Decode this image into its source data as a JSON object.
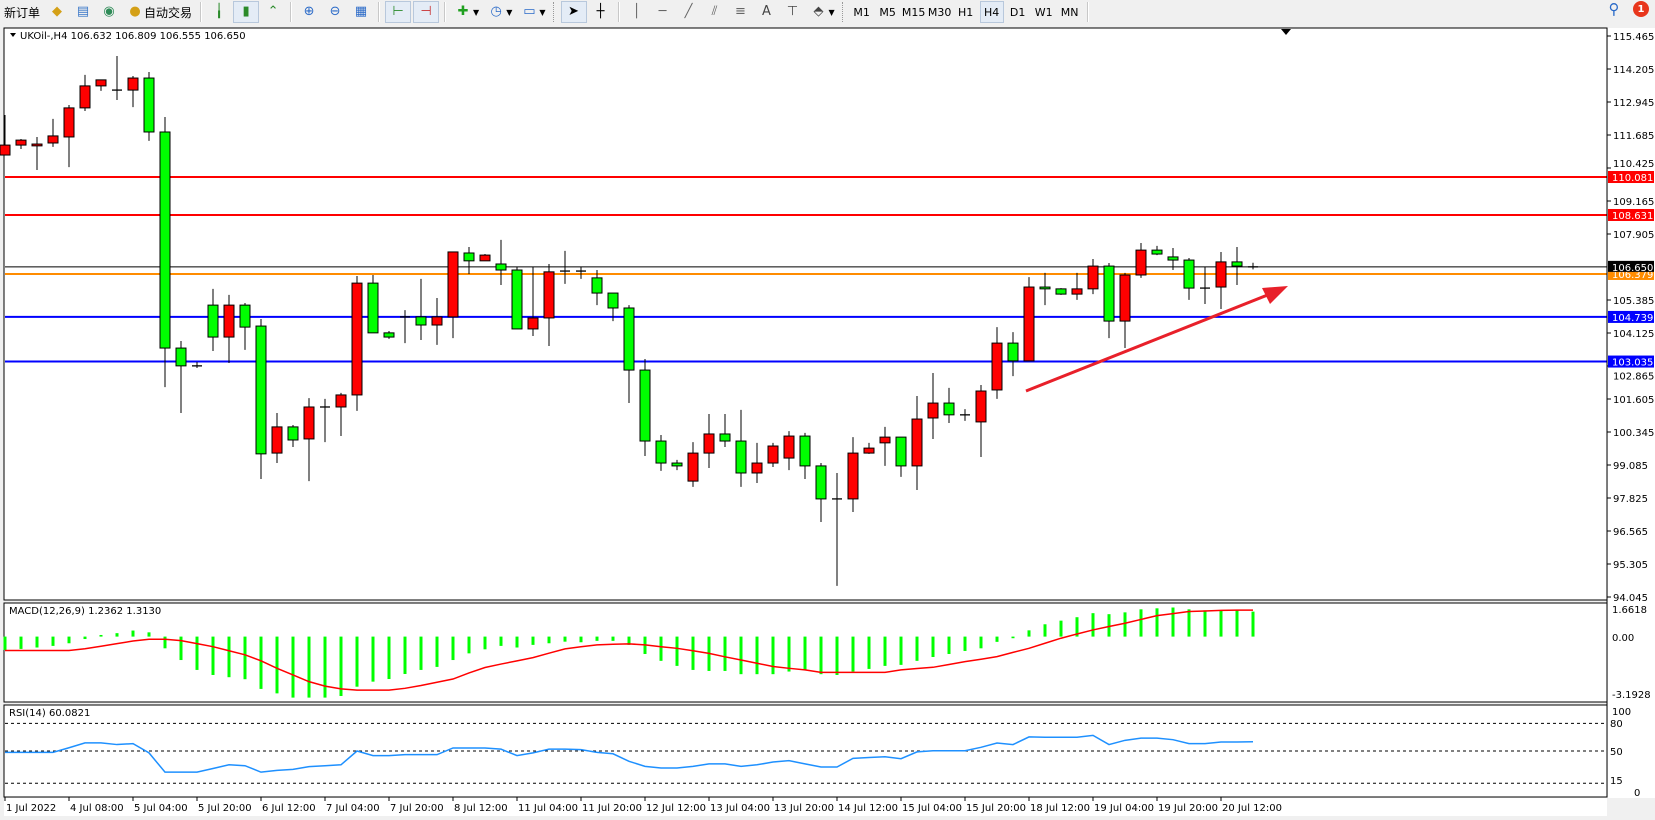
{
  "toolbar": {
    "new_order_label": "新订单",
    "auto_trading_label": "自动交易",
    "timeframes": [
      "M1",
      "M5",
      "M15",
      "M30",
      "H1",
      "H4",
      "D1",
      "W1",
      "MN"
    ],
    "active_timeframe": "H4",
    "text_tool_label": "A",
    "notification_count": "1"
  },
  "chart": {
    "header": "UKOil-,H4  106.632 106.809 106.555 106.650",
    "price_ticks": [
      "115.465",
      "114.205",
      "112.945",
      "111.685",
      "110.425",
      "109.165",
      "107.905",
      "105.385",
      "104.125",
      "102.865",
      "101.605",
      "100.345",
      "99.085",
      "97.825",
      "96.565",
      "95.305",
      "94.045"
    ],
    "current_price": "106.650",
    "levels": [
      {
        "price": 110.081,
        "label": "110.081",
        "color": "#ff0000"
      },
      {
        "price": 108.631,
        "label": "108.631",
        "color": "#ff0000"
      },
      {
        "price": 106.379,
        "label": "106.379",
        "color": "#ff8c00"
      },
      {
        "price": 104.739,
        "label": "104.739",
        "color": "#0000ff"
      },
      {
        "price": 103.035,
        "label": "103.035",
        "color": "#0000ff"
      }
    ],
    "colors": {
      "bull": "#ff0000",
      "bear": "#00ff00",
      "macd_hist": "#00ff00",
      "macd_signal": "#ff0000",
      "rsi": "#1e90ff",
      "arrow": "#e8202a"
    },
    "time_labels": [
      "1 Jul 2022",
      "4 Jul 08:00",
      "5 Jul 04:00",
      "5 Jul 20:00",
      "6 Jul 12:00",
      "7 Jul 04:00",
      "7 Jul 20:00",
      "8 Jul 12:00",
      "11 Jul 04:00",
      "11 Jul 20:00",
      "12 Jul 12:00",
      "13 Jul 04:00",
      "13 Jul 20:00",
      "14 Jul 12:00",
      "15 Jul 04:00",
      "15 Jul 20:00",
      "18 Jul 12:00",
      "19 Jul 04:00",
      "19 Jul 20:00",
      "20 Jul 12:00"
    ],
    "macd": {
      "label": "MACD(12,26,9) 1.2362 1.3130",
      "ticks": [
        "1.6618",
        "0.00",
        "-3.1928"
      ]
    },
    "rsi": {
      "label": "RSI(14) 60.0821",
      "ticks": [
        "100",
        "80",
        "50",
        "15",
        "0"
      ],
      "levels": [
        80,
        50,
        15
      ]
    }
  },
  "chart_data": {
    "type": "candlestick",
    "symbol": "UKOil-",
    "timeframe": "H4",
    "ylim": [
      94.045,
      115.465
    ],
    "ohlc": [
      [
        110.92,
        112.45,
        110.92,
        111.3
      ],
      [
        111.3,
        111.53,
        111.15,
        111.49
      ],
      [
        111.27,
        111.61,
        110.35,
        111.34
      ],
      [
        111.38,
        112.3,
        111.23,
        111.65
      ],
      [
        111.61,
        112.83,
        110.46,
        112.72
      ],
      [
        112.72,
        113.98,
        112.6,
        113.56
      ],
      [
        113.56,
        113.79,
        113.37,
        113.79
      ],
      [
        113.4,
        114.7,
        113.02,
        113.4
      ],
      [
        113.4,
        113.94,
        112.75,
        113.86
      ],
      [
        113.86,
        114.09,
        111.46,
        111.8
      ],
      [
        111.8,
        112.37,
        102.06,
        103.55
      ],
      [
        103.55,
        103.82,
        101.07,
        102.87
      ],
      [
        102.87,
        103.02,
        102.79,
        102.87
      ],
      [
        105.19,
        105.81,
        103.44,
        103.97
      ],
      [
        103.97,
        105.58,
        102.98,
        105.19
      ],
      [
        105.19,
        105.27,
        103.48,
        104.35
      ],
      [
        104.39,
        104.66,
        98.55,
        99.51
      ],
      [
        99.54,
        101.07,
        99.16,
        100.54
      ],
      [
        100.54,
        100.61,
        99.77,
        100.04
      ],
      [
        100.08,
        101.64,
        98.47,
        101.3
      ],
      [
        101.3,
        101.61,
        99.96,
        101.3
      ],
      [
        101.3,
        101.84,
        100.19,
        101.76
      ],
      [
        101.76,
        106.3,
        101.15,
        106.03
      ],
      [
        106.03,
        106.34,
        104.13,
        104.13
      ],
      [
        104.13,
        104.2,
        103.9,
        103.97
      ],
      [
        104.74,
        105.0,
        103.74,
        104.74
      ],
      [
        104.74,
        106.19,
        103.86,
        104.43
      ],
      [
        104.43,
        105.46,
        103.67,
        104.74
      ],
      [
        104.74,
        107.22,
        103.93,
        107.22
      ],
      [
        107.18,
        107.41,
        106.38,
        106.88
      ],
      [
        106.88,
        107.14,
        106.88,
        107.1
      ],
      [
        106.76,
        107.68,
        105.96,
        106.53
      ],
      [
        106.53,
        106.65,
        104.28,
        104.28
      ],
      [
        104.28,
        106.65,
        104.01,
        104.7
      ],
      [
        104.7,
        106.76,
        103.63,
        106.46
      ],
      [
        106.49,
        107.26,
        106.0,
        106.49
      ],
      [
        106.49,
        106.65,
        106.19,
        106.49
      ],
      [
        106.23,
        106.53,
        105.19,
        105.65
      ],
      [
        105.65,
        105.65,
        104.58,
        105.08
      ],
      [
        105.08,
        105.19,
        101.45,
        102.71
      ],
      [
        102.71,
        103.13,
        99.43,
        100.0
      ],
      [
        100.0,
        100.23,
        98.86,
        99.16
      ],
      [
        99.16,
        99.28,
        98.89,
        99.05
      ],
      [
        98.47,
        99.96,
        98.25,
        99.54
      ],
      [
        99.54,
        101.03,
        98.97,
        100.27
      ],
      [
        100.27,
        101.03,
        99.77,
        100.0
      ],
      [
        100.0,
        101.19,
        98.25,
        98.78
      ],
      [
        98.78,
        99.93,
        98.4,
        99.16
      ],
      [
        99.16,
        99.93,
        99.01,
        99.81
      ],
      [
        99.35,
        100.38,
        98.89,
        100.19
      ],
      [
        100.19,
        100.31,
        98.55,
        99.05
      ],
      [
        99.05,
        99.16,
        96.91,
        97.79
      ],
      [
        97.79,
        98.78,
        94.47,
        97.79
      ],
      [
        97.79,
        100.15,
        97.29,
        99.54
      ],
      [
        99.54,
        99.93,
        99.51,
        99.73
      ],
      [
        99.93,
        100.54,
        99.05,
        100.15
      ],
      [
        100.15,
        100.15,
        98.63,
        99.05
      ],
      [
        99.05,
        101.72,
        98.13,
        100.84
      ],
      [
        100.88,
        102.6,
        100.08,
        101.45
      ],
      [
        101.45,
        102.03,
        100.69,
        101.0
      ],
      [
        101.0,
        101.22,
        100.77,
        101.0
      ],
      [
        100.73,
        102.14,
        99.39,
        101.91
      ],
      [
        101.95,
        104.35,
        101.61,
        103.74
      ],
      [
        103.74,
        104.16,
        102.48,
        103.06
      ],
      [
        103.06,
        106.26,
        103.06,
        105.88
      ],
      [
        105.88,
        106.42,
        105.19,
        105.81
      ],
      [
        105.81,
        105.84,
        105.58,
        105.61
      ],
      [
        105.61,
        106.42,
        105.39,
        105.81
      ],
      [
        105.81,
        106.95,
        105.61,
        106.68
      ],
      [
        106.68,
        106.8,
        103.93,
        104.58
      ],
      [
        104.58,
        106.42,
        103.55,
        106.34
      ],
      [
        106.34,
        107.56,
        106.23,
        107.29
      ],
      [
        107.29,
        107.45,
        107.1,
        107.14
      ],
      [
        107.03,
        107.37,
        106.53,
        106.91
      ],
      [
        106.91,
        106.99,
        105.39,
        105.84
      ],
      [
        105.84,
        106.65,
        105.23,
        105.84
      ],
      [
        105.88,
        107.22,
        105.04,
        106.84
      ],
      [
        106.84,
        107.41,
        105.96,
        106.68
      ],
      [
        106.632,
        106.809,
        106.555,
        106.65
      ]
    ],
    "macd_histogram": [
      -0.66,
      -0.61,
      -0.54,
      -0.46,
      -0.33,
      -0.12,
      0.08,
      0.17,
      0.3,
      0.21,
      -0.58,
      -1.16,
      -1.65,
      -1.9,
      -2.01,
      -2.11,
      -2.59,
      -2.81,
      -3.02,
      -3.02,
      -3.02,
      -2.94,
      -2.48,
      -2.23,
      -2.1,
      -1.85,
      -1.65,
      -1.5,
      -1.16,
      -0.83,
      -0.63,
      -0.46,
      -0.54,
      -0.41,
      -0.33,
      -0.25,
      -0.28,
      -0.21,
      -0.21,
      -0.41,
      -0.86,
      -1.2,
      -1.45,
      -1.65,
      -1.7,
      -1.7,
      -1.86,
      -1.86,
      -1.86,
      -1.73,
      -1.65,
      -1.86,
      -1.9,
      -1.73,
      -1.6,
      -1.45,
      -1.4,
      -1.2,
      -1.01,
      -0.86,
      -0.71,
      -0.58,
      -0.26,
      -0.08,
      0.31,
      0.61,
      0.79,
      0.96,
      1.16,
      1.11,
      1.2,
      1.35,
      1.4,
      1.44,
      1.35,
      1.3,
      1.3,
      1.29,
      1.2362
    ],
    "macd_signal": [
      -0.69,
      -0.69,
      -0.69,
      -0.69,
      -0.69,
      -0.6,
      -0.48,
      -0.35,
      -0.22,
      -0.13,
      -0.13,
      -0.2,
      -0.35,
      -0.5,
      -0.7,
      -0.9,
      -1.2,
      -1.57,
      -1.9,
      -2.23,
      -2.45,
      -2.59,
      -2.65,
      -2.65,
      -2.65,
      -2.56,
      -2.42,
      -2.26,
      -2.1,
      -1.8,
      -1.53,
      -1.36,
      -1.2,
      -1.04,
      -0.82,
      -0.61,
      -0.5,
      -0.41,
      -0.38,
      -0.36,
      -0.41,
      -0.5,
      -0.58,
      -0.7,
      -0.83,
      -1.0,
      -1.16,
      -1.32,
      -1.48,
      -1.57,
      -1.65,
      -1.77,
      -1.77,
      -1.77,
      -1.77,
      -1.77,
      -1.65,
      -1.58,
      -1.52,
      -1.38,
      -1.24,
      -1.12,
      -0.99,
      -0.78,
      -0.58,
      -0.33,
      -0.08,
      0.13,
      0.33,
      0.5,
      0.66,
      0.85,
      1.04,
      1.14,
      1.24,
      1.27,
      1.3,
      1.313,
      1.313
    ],
    "rsi": [
      48.5,
      48.5,
      48.5,
      48.5,
      53.5,
      58.8,
      58.8,
      57,
      58,
      48,
      27,
      27,
      27,
      31,
      35,
      34,
      27,
      29,
      30,
      33,
      34,
      35,
      50,
      45,
      45,
      46,
      46,
      46,
      53.3,
      53.3,
      53.3,
      52,
      45,
      48,
      52,
      52,
      51.5,
      48.5,
      47,
      38.8,
      33.3,
      31.5,
      31.5,
      33.3,
      36,
      36,
      33.3,
      35,
      38,
      39.5,
      36,
      32.6,
      32.6,
      42,
      43,
      43.8,
      41.6,
      49,
      50.3,
      50.3,
      50.3,
      54,
      58.7,
      57,
      65.3,
      65,
      65,
      65,
      67,
      57,
      61.6,
      64,
      64,
      62.3,
      58,
      58,
      59.8,
      59.8,
      60.0821
    ]
  }
}
